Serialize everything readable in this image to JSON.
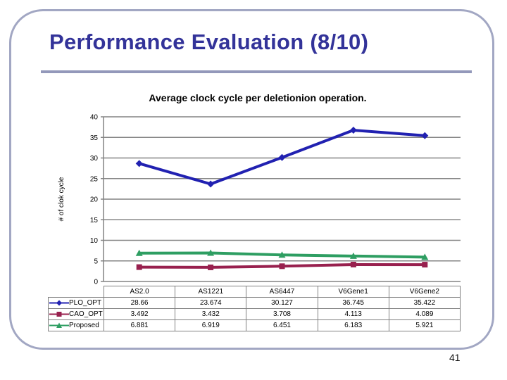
{
  "slide": {
    "title": "Performance Evaluation (8/10)",
    "page_number": "41",
    "colors": {
      "title_text": "#333399",
      "border": "#A2A7C3",
      "rule": "#9398BA",
      "gridline": "#848484"
    }
  },
  "chart_data": {
    "type": "line",
    "title": "Average clock cycle per deletionion operation.",
    "xlabel": "",
    "ylabel": "# of clok cycle",
    "ylim": [
      0,
      40
    ],
    "yticks": [
      0,
      5,
      10,
      15,
      20,
      25,
      30,
      35,
      40
    ],
    "grid": true,
    "legend_position": "data-table-left",
    "categories": [
      "AS2.0",
      "AS1221",
      "AS6447",
      "V6Gene1",
      "V6Gene2"
    ],
    "series": [
      {
        "name": "PLO_OPT",
        "marker": "diamond",
        "color": "#2121B1",
        "values": [
          28.66,
          23.674,
          30.127,
          36.745,
          35.422
        ]
      },
      {
        "name": "CAO_OPT",
        "marker": "square",
        "color": "#98204E",
        "values": [
          3.492,
          3.432,
          3.708,
          4.113,
          4.089
        ]
      },
      {
        "name": "Proposed",
        "marker": "triangle",
        "color": "#2E9E62",
        "values": [
          6.881,
          6.919,
          6.451,
          6.183,
          5.921
        ]
      }
    ]
  }
}
